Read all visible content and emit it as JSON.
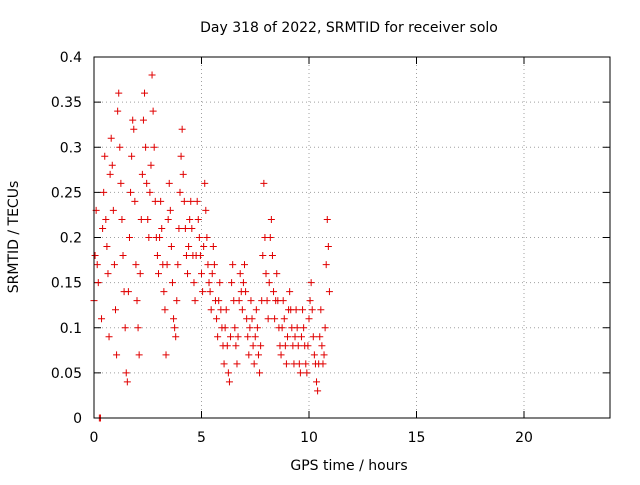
{
  "chart_data": {
    "type": "scatter",
    "title": "Day 318 of 2022, SRMTID for receiver solo",
    "xlabel": "GPS time / hours",
    "ylabel": "SRMTID / TECUs",
    "xlim": [
      0,
      24
    ],
    "ylim": [
      0,
      0.4
    ],
    "x_ticks": [
      0,
      5,
      10,
      15,
      20
    ],
    "x_tick_labels": [
      "0",
      "5",
      "10",
      "15",
      "20"
    ],
    "y_ticks": [
      0,
      0.05,
      0.1,
      0.15,
      0.2,
      0.25,
      0.3,
      0.35,
      0.4
    ],
    "y_tick_labels": [
      "0",
      "0.05",
      "0.1",
      "0.15",
      "0.2",
      "0.25",
      "0.3",
      "0.35",
      "0.4"
    ],
    "grid": true,
    "legend": "none",
    "marker": "+",
    "marker_color": "#e00000",
    "series": [
      {
        "points": [
          [
            0.0,
            0.13
          ],
          [
            0.05,
            0.18
          ],
          [
            0.1,
            0.23
          ],
          [
            0.15,
            0.17
          ],
          [
            0.2,
            0.15
          ],
          [
            0.25,
            0.0
          ],
          [
            0.3,
            0.0
          ],
          [
            0.35,
            0.11
          ],
          [
            0.4,
            0.21
          ],
          [
            0.45,
            0.25
          ],
          [
            0.5,
            0.29
          ],
          [
            0.55,
            0.22
          ],
          [
            0.6,
            0.19
          ],
          [
            0.65,
            0.16
          ],
          [
            0.7,
            0.09
          ],
          [
            0.75,
            0.27
          ],
          [
            0.8,
            0.31
          ],
          [
            0.85,
            0.28
          ],
          [
            0.9,
            0.23
          ],
          [
            0.95,
            0.17
          ],
          [
            1.0,
            0.12
          ],
          [
            1.05,
            0.07
          ],
          [
            1.1,
            0.34
          ],
          [
            1.15,
            0.36
          ],
          [
            1.2,
            0.3
          ],
          [
            1.25,
            0.26
          ],
          [
            1.3,
            0.22
          ],
          [
            1.35,
            0.18
          ],
          [
            1.4,
            0.14
          ],
          [
            1.45,
            0.1
          ],
          [
            1.5,
            0.05
          ],
          [
            1.55,
            0.04
          ],
          [
            1.6,
            0.14
          ],
          [
            1.65,
            0.2
          ],
          [
            1.7,
            0.25
          ],
          [
            1.75,
            0.29
          ],
          [
            1.8,
            0.33
          ],
          [
            1.85,
            0.32
          ],
          [
            1.9,
            0.24
          ],
          [
            1.95,
            0.17
          ],
          [
            2.0,
            0.13
          ],
          [
            2.05,
            0.1
          ],
          [
            2.1,
            0.07
          ],
          [
            2.15,
            0.16
          ],
          [
            2.2,
            0.22
          ],
          [
            2.25,
            0.27
          ],
          [
            2.3,
            0.33
          ],
          [
            2.35,
            0.36
          ],
          [
            2.4,
            0.3
          ],
          [
            2.45,
            0.26
          ],
          [
            2.5,
            0.22
          ],
          [
            2.55,
            0.2
          ],
          [
            2.6,
            0.25
          ],
          [
            2.65,
            0.28
          ],
          [
            2.7,
            0.38
          ],
          [
            2.75,
            0.34
          ],
          [
            2.8,
            0.3
          ],
          [
            2.85,
            0.24
          ],
          [
            2.9,
            0.2
          ],
          [
            2.95,
            0.18
          ],
          [
            3.0,
            0.16
          ],
          [
            3.05,
            0.2
          ],
          [
            3.1,
            0.24
          ],
          [
            3.15,
            0.21
          ],
          [
            3.2,
            0.17
          ],
          [
            3.25,
            0.14
          ],
          [
            3.3,
            0.12
          ],
          [
            3.35,
            0.07
          ],
          [
            3.4,
            0.17
          ],
          [
            3.45,
            0.22
          ],
          [
            3.5,
            0.26
          ],
          [
            3.55,
            0.23
          ],
          [
            3.6,
            0.19
          ],
          [
            3.65,
            0.15
          ],
          [
            3.7,
            0.11
          ],
          [
            3.75,
            0.1
          ],
          [
            3.8,
            0.09
          ],
          [
            3.85,
            0.13
          ],
          [
            3.9,
            0.17
          ],
          [
            3.95,
            0.21
          ],
          [
            4.0,
            0.25
          ],
          [
            4.05,
            0.29
          ],
          [
            4.1,
            0.32
          ],
          [
            4.15,
            0.27
          ],
          [
            4.2,
            0.24
          ],
          [
            4.25,
            0.21
          ],
          [
            4.3,
            0.18
          ],
          [
            4.35,
            0.16
          ],
          [
            4.4,
            0.19
          ],
          [
            4.45,
            0.22
          ],
          [
            4.5,
            0.24
          ],
          [
            4.55,
            0.21
          ],
          [
            4.6,
            0.18
          ],
          [
            4.65,
            0.15
          ],
          [
            4.7,
            0.13
          ],
          [
            4.75,
            0.18
          ],
          [
            4.8,
            0.24
          ],
          [
            4.85,
            0.22
          ],
          [
            4.9,
            0.2
          ],
          [
            4.95,
            0.18
          ],
          [
            5.0,
            0.16
          ],
          [
            5.05,
            0.14
          ],
          [
            5.1,
            0.19
          ],
          [
            5.15,
            0.26
          ],
          [
            5.2,
            0.23
          ],
          [
            5.25,
            0.2
          ],
          [
            5.3,
            0.17
          ],
          [
            5.35,
            0.15
          ],
          [
            5.4,
            0.14
          ],
          [
            5.45,
            0.12
          ],
          [
            5.5,
            0.16
          ],
          [
            5.55,
            0.19
          ],
          [
            5.6,
            0.17
          ],
          [
            5.65,
            0.13
          ],
          [
            5.7,
            0.11
          ],
          [
            5.75,
            0.09
          ],
          [
            5.8,
            0.13
          ],
          [
            5.85,
            0.15
          ],
          [
            5.9,
            0.12
          ],
          [
            5.95,
            0.1
          ],
          [
            6.0,
            0.08
          ],
          [
            6.05,
            0.06
          ],
          [
            6.1,
            0.1
          ],
          [
            6.15,
            0.12
          ],
          [
            6.2,
            0.08
          ],
          [
            6.25,
            0.05
          ],
          [
            6.3,
            0.04
          ],
          [
            6.35,
            0.09
          ],
          [
            6.4,
            0.15
          ],
          [
            6.45,
            0.17
          ],
          [
            6.5,
            0.13
          ],
          [
            6.55,
            0.1
          ],
          [
            6.6,
            0.08
          ],
          [
            6.65,
            0.06
          ],
          [
            6.7,
            0.09
          ],
          [
            6.75,
            0.13
          ],
          [
            6.8,
            0.16
          ],
          [
            6.85,
            0.14
          ],
          [
            6.9,
            0.12
          ],
          [
            6.95,
            0.15
          ],
          [
            7.0,
            0.17
          ],
          [
            7.05,
            0.14
          ],
          [
            7.1,
            0.11
          ],
          [
            7.15,
            0.09
          ],
          [
            7.2,
            0.07
          ],
          [
            7.25,
            0.1
          ],
          [
            7.3,
            0.13
          ],
          [
            7.35,
            0.11
          ],
          [
            7.4,
            0.08
          ],
          [
            7.45,
            0.06
          ],
          [
            7.5,
            0.09
          ],
          [
            7.55,
            0.12
          ],
          [
            7.6,
            0.1
          ],
          [
            7.65,
            0.07
          ],
          [
            7.7,
            0.05
          ],
          [
            7.75,
            0.08
          ],
          [
            7.8,
            0.13
          ],
          [
            7.85,
            0.18
          ],
          [
            7.9,
            0.26
          ],
          [
            7.95,
            0.2
          ],
          [
            8.0,
            0.16
          ],
          [
            8.05,
            0.13
          ],
          [
            8.1,
            0.11
          ],
          [
            8.15,
            0.15
          ],
          [
            8.2,
            0.2
          ],
          [
            8.25,
            0.22
          ],
          [
            8.3,
            0.18
          ],
          [
            8.35,
            0.14
          ],
          [
            8.4,
            0.11
          ],
          [
            8.45,
            0.13
          ],
          [
            8.5,
            0.16
          ],
          [
            8.55,
            0.13
          ],
          [
            8.6,
            0.1
          ],
          [
            8.65,
            0.08
          ],
          [
            8.7,
            0.07
          ],
          [
            8.75,
            0.1
          ],
          [
            8.8,
            0.13
          ],
          [
            8.85,
            0.11
          ],
          [
            8.9,
            0.08
          ],
          [
            8.95,
            0.06
          ],
          [
            9.0,
            0.09
          ],
          [
            9.05,
            0.12
          ],
          [
            9.1,
            0.14
          ],
          [
            9.15,
            0.12
          ],
          [
            9.2,
            0.1
          ],
          [
            9.25,
            0.08
          ],
          [
            9.3,
            0.06
          ],
          [
            9.35,
            0.09
          ],
          [
            9.4,
            0.12
          ],
          [
            9.45,
            0.1
          ],
          [
            9.5,
            0.08
          ],
          [
            9.55,
            0.06
          ],
          [
            9.6,
            0.05
          ],
          [
            9.65,
            0.09
          ],
          [
            9.7,
            0.12
          ],
          [
            9.75,
            0.1
          ],
          [
            9.8,
            0.08
          ],
          [
            9.85,
            0.06
          ],
          [
            9.9,
            0.05
          ],
          [
            9.95,
            0.08
          ],
          [
            10.0,
            0.11
          ],
          [
            10.05,
            0.13
          ],
          [
            10.1,
            0.15
          ],
          [
            10.15,
            0.12
          ],
          [
            10.2,
            0.09
          ],
          [
            10.25,
            0.07
          ],
          [
            10.3,
            0.06
          ],
          [
            10.35,
            0.04
          ],
          [
            10.4,
            0.03
          ],
          [
            10.45,
            0.06
          ],
          [
            10.5,
            0.09
          ],
          [
            10.55,
            0.12
          ],
          [
            10.6,
            0.08
          ],
          [
            10.65,
            0.06
          ],
          [
            10.7,
            0.07
          ],
          [
            10.75,
            0.1
          ],
          [
            10.8,
            0.17
          ],
          [
            10.85,
            0.22
          ],
          [
            10.9,
            0.19
          ],
          [
            10.95,
            0.14
          ]
        ]
      }
    ]
  }
}
